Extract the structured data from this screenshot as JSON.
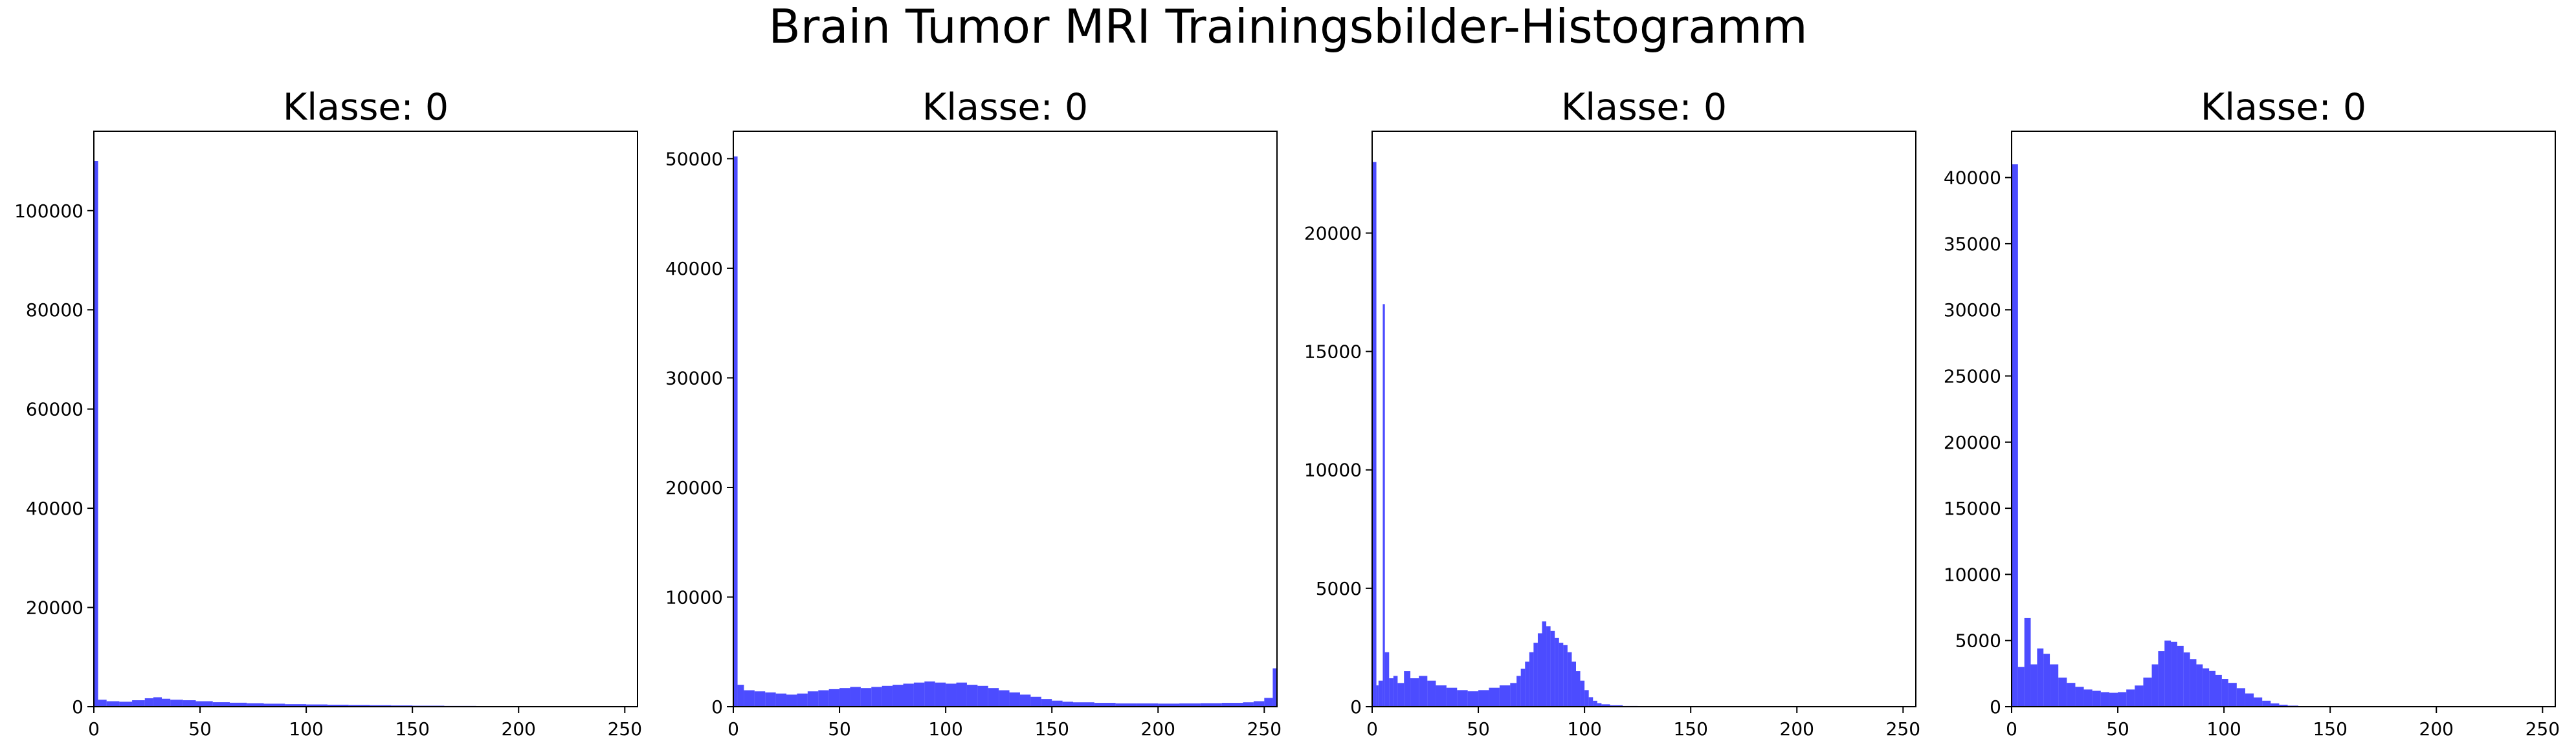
{
  "figure": {
    "title": "Brain Tumor MRI Trainingsbilder-Histogramm"
  },
  "chart_data": [
    {
      "type": "bar",
      "title": "Klasse: 0",
      "color": "#0000ff",
      "opacity": 0.7,
      "xlim": [
        0,
        256
      ],
      "ylim": [
        0,
        116000
      ],
      "xticks": [
        0,
        50,
        100,
        150,
        200,
        250
      ],
      "yticks": [
        0,
        20000,
        40000,
        60000,
        80000,
        100000
      ],
      "bins": [
        [
          0,
          110000
        ],
        [
          2,
          1400
        ],
        [
          6,
          1100
        ],
        [
          12,
          1000
        ],
        [
          18,
          1300
        ],
        [
          24,
          1700
        ],
        [
          28,
          1900
        ],
        [
          32,
          1600
        ],
        [
          36,
          1400
        ],
        [
          42,
          1300
        ],
        [
          48,
          1100
        ],
        [
          56,
          900
        ],
        [
          64,
          800
        ],
        [
          72,
          700
        ],
        [
          80,
          600
        ],
        [
          90,
          500
        ],
        [
          100,
          450
        ],
        [
          110,
          400
        ],
        [
          120,
          350
        ],
        [
          130,
          300
        ],
        [
          140,
          250
        ],
        [
          150,
          200
        ],
        [
          165,
          150
        ],
        [
          180,
          120
        ],
        [
          200,
          100
        ],
        [
          220,
          80
        ],
        [
          240,
          70
        ],
        [
          250,
          60
        ]
      ]
    },
    {
      "type": "bar",
      "title": "Klasse: 0",
      "color": "#0000ff",
      "opacity": 0.7,
      "xlim": [
        0,
        256
      ],
      "ylim": [
        0,
        52500
      ],
      "xticks": [
        0,
        50,
        100,
        150,
        200,
        250
      ],
      "yticks": [
        0,
        10000,
        20000,
        30000,
        40000,
        50000
      ],
      "bins": [
        [
          0,
          50200
        ],
        [
          2,
          2000
        ],
        [
          5,
          1500
        ],
        [
          10,
          1400
        ],
        [
          15,
          1300
        ],
        [
          20,
          1200
        ],
        [
          25,
          1100
        ],
        [
          30,
          1200
        ],
        [
          35,
          1400
        ],
        [
          40,
          1500
        ],
        [
          45,
          1600
        ],
        [
          50,
          1700
        ],
        [
          55,
          1800
        ],
        [
          60,
          1700
        ],
        [
          65,
          1800
        ],
        [
          70,
          1900
        ],
        [
          75,
          2000
        ],
        [
          80,
          2100
        ],
        [
          85,
          2200
        ],
        [
          90,
          2300
        ],
        [
          95,
          2200
        ],
        [
          100,
          2100
        ],
        [
          105,
          2200
        ],
        [
          110,
          2000
        ],
        [
          115,
          1900
        ],
        [
          120,
          1700
        ],
        [
          125,
          1500
        ],
        [
          130,
          1300
        ],
        [
          135,
          1100
        ],
        [
          140,
          900
        ],
        [
          145,
          700
        ],
        [
          150,
          550
        ],
        [
          155,
          450
        ],
        [
          160,
          400
        ],
        [
          170,
          350
        ],
        [
          180,
          300
        ],
        [
          190,
          300
        ],
        [
          200,
          280
        ],
        [
          210,
          300
        ],
        [
          220,
          320
        ],
        [
          230,
          350
        ],
        [
          240,
          400
        ],
        [
          245,
          500
        ],
        [
          250,
          800
        ],
        [
          254,
          3500
        ]
      ]
    },
    {
      "type": "bar",
      "title": "Klasse: 0",
      "color": "#0000ff",
      "opacity": 0.7,
      "xlim": [
        0,
        256
      ],
      "ylim": [
        0,
        24300
      ],
      "xticks": [
        0,
        50,
        100,
        150,
        200,
        250
      ],
      "yticks": [
        0,
        5000,
        10000,
        15000,
        20000
      ],
      "bins": [
        [
          0,
          23000
        ],
        [
          2,
          900
        ],
        [
          3,
          1100
        ],
        [
          5,
          17000
        ],
        [
          6,
          2300
        ],
        [
          8,
          1200
        ],
        [
          10,
          1300
        ],
        [
          12,
          1000
        ],
        [
          15,
          1500
        ],
        [
          18,
          1200
        ],
        [
          22,
          1300
        ],
        [
          26,
          1100
        ],
        [
          30,
          900
        ],
        [
          35,
          800
        ],
        [
          40,
          700
        ],
        [
          45,
          650
        ],
        [
          50,
          700
        ],
        [
          55,
          800
        ],
        [
          60,
          900
        ],
        [
          65,
          1000
        ],
        [
          68,
          1300
        ],
        [
          70,
          1600
        ],
        [
          72,
          1900
        ],
        [
          74,
          2300
        ],
        [
          76,
          2700
        ],
        [
          78,
          3100
        ],
        [
          80,
          3600
        ],
        [
          82,
          3400
        ],
        [
          84,
          3200
        ],
        [
          86,
          2900
        ],
        [
          88,
          2700
        ],
        [
          90,
          2600
        ],
        [
          92,
          2300
        ],
        [
          94,
          1900
        ],
        [
          96,
          1500
        ],
        [
          98,
          1100
        ],
        [
          100,
          700
        ],
        [
          102,
          400
        ],
        [
          104,
          250
        ],
        [
          106,
          150
        ],
        [
          108,
          100
        ],
        [
          112,
          60
        ],
        [
          118,
          30
        ],
        [
          125,
          10
        ]
      ]
    },
    {
      "type": "bar",
      "title": "Klasse: 0",
      "color": "#0000ff",
      "opacity": 0.7,
      "xlim": [
        0,
        256
      ],
      "ylim": [
        0,
        43500
      ],
      "xticks": [
        0,
        50,
        100,
        150,
        200,
        250
      ],
      "yticks": [
        0,
        5000,
        10000,
        15000,
        20000,
        25000,
        30000,
        35000,
        40000
      ],
      "bins": [
        [
          0,
          41000
        ],
        [
          3,
          3000
        ],
        [
          6,
          6700
        ],
        [
          9,
          3200
        ],
        [
          12,
          4400
        ],
        [
          15,
          4000
        ],
        [
          18,
          3200
        ],
        [
          22,
          2200
        ],
        [
          26,
          1800
        ],
        [
          30,
          1500
        ],
        [
          34,
          1300
        ],
        [
          38,
          1200
        ],
        [
          42,
          1100
        ],
        [
          46,
          1050
        ],
        [
          50,
          1100
        ],
        [
          54,
          1300
        ],
        [
          58,
          1600
        ],
        [
          62,
          2200
        ],
        [
          66,
          3200
        ],
        [
          69,
          4200
        ],
        [
          72,
          5000
        ],
        [
          75,
          4900
        ],
        [
          78,
          4600
        ],
        [
          81,
          4100
        ],
        [
          84,
          3600
        ],
        [
          87,
          3200
        ],
        [
          90,
          2900
        ],
        [
          93,
          2700
        ],
        [
          96,
          2400
        ],
        [
          99,
          2100
        ],
        [
          102,
          1800
        ],
        [
          106,
          1400
        ],
        [
          110,
          1000
        ],
        [
          114,
          700
        ],
        [
          118,
          450
        ],
        [
          122,
          250
        ],
        [
          126,
          150
        ],
        [
          130,
          80
        ],
        [
          135,
          40
        ],
        [
          140,
          20
        ]
      ]
    }
  ]
}
